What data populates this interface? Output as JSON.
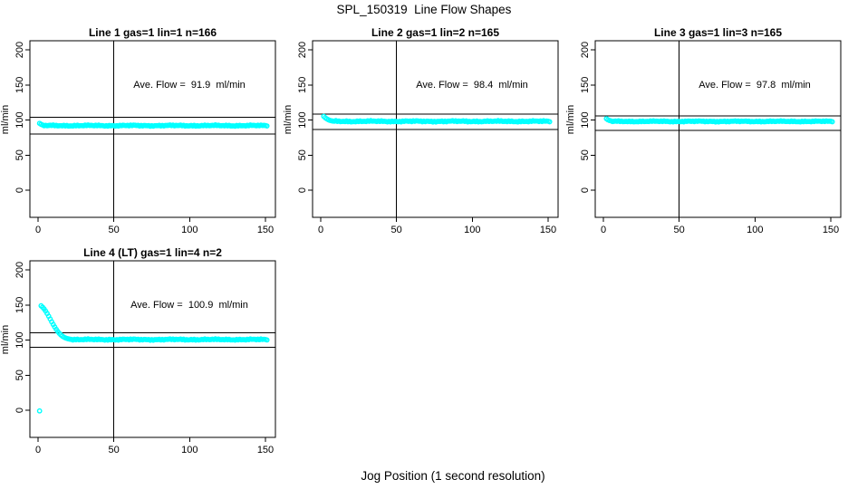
{
  "figure": {
    "title": "SPL_150319  Line Flow Shapes",
    "xlabel": "Jog Position (1 second resolution)",
    "accent_color": "#00FFFF",
    "line_color": "#000000"
  },
  "chart_data": [
    {
      "type": "scatter",
      "title": "Line 1 gas=1 lin=1 n=166",
      "ylabel": "ml/min",
      "annotation": "Ave. Flow =  91.9  ml/min",
      "ave_flow": 91.9,
      "x_ticks": [
        0,
        50,
        100,
        150
      ],
      "y_ticks": [
        0,
        50,
        100,
        150,
        200
      ],
      "xlim": [
        -5,
        157
      ],
      "ylim": [
        -39,
        213
      ],
      "grid": false,
      "vline_x": 50,
      "ref_lines": [
        104,
        80
      ],
      "annotation_pos": [
        100,
        150
      ],
      "marker": "open-circle",
      "outliers": [],
      "head_points": [
        [
          1,
          95.2
        ],
        [
          2,
          93.8
        ],
        [
          3,
          92.9
        ]
      ],
      "steady": {
        "x_from": 4,
        "x_to": 151,
        "y": 92.0,
        "amplitude": 1.0
      }
    },
    {
      "type": "scatter",
      "title": "Line 2 gas=1 lin=2 n=165",
      "ylabel": "ml/min",
      "annotation": "Ave. Flow =  98.4  ml/min",
      "ave_flow": 98.4,
      "x_ticks": [
        0,
        50,
        100,
        150
      ],
      "y_ticks": [
        0,
        50,
        100,
        150,
        200
      ],
      "xlim": [
        -5,
        157
      ],
      "ylim": [
        -39,
        213
      ],
      "grid": false,
      "vline_x": 50,
      "ref_lines": [
        108.4,
        86.5
      ],
      "annotation_pos": [
        100,
        150
      ],
      "marker": "open-circle",
      "outliers": [],
      "head_points": [
        [
          2,
          105.2
        ],
        [
          3,
          103.2
        ],
        [
          4,
          101.6
        ],
        [
          5,
          100.4
        ],
        [
          6,
          99.5
        ],
        [
          7,
          98.9
        ],
        [
          8,
          98.5
        ]
      ],
      "steady": {
        "x_from": 9,
        "x_to": 151,
        "y": 98.1,
        "amplitude": 1.1
      }
    },
    {
      "type": "scatter",
      "title": "Line 3 gas=1 lin=3 n=165",
      "ylabel": "ml/min",
      "annotation": "Ave. Flow =  97.8  ml/min",
      "ave_flow": 97.8,
      "x_ticks": [
        0,
        50,
        100,
        150
      ],
      "y_ticks": [
        0,
        50,
        100,
        150,
        200
      ],
      "xlim": [
        -5,
        157
      ],
      "ylim": [
        -39,
        213
      ],
      "grid": false,
      "vline_x": 50,
      "ref_lines": [
        105.8,
        85.2
      ],
      "annotation_pos": [
        100,
        150
      ],
      "marker": "open-circle",
      "outliers": [],
      "head_points": [
        [
          2,
          101.8
        ],
        [
          3,
          100.3
        ],
        [
          4,
          99.3
        ],
        [
          5,
          98.7
        ]
      ],
      "steady": {
        "x_from": 6,
        "x_to": 151,
        "y": 98.0,
        "amplitude": 0.9
      }
    },
    {
      "type": "scatter",
      "title": "Line 4 (LT) gas=1 lin=4 n=2",
      "ylabel": "ml/min",
      "annotation": "Ave. Flow =  100.9  ml/min",
      "ave_flow": 100.9,
      "x_ticks": [
        0,
        50,
        100,
        150
      ],
      "y_ticks": [
        0,
        50,
        100,
        150,
        200
      ],
      "xlim": [
        -5,
        157
      ],
      "ylim": [
        -39,
        213
      ],
      "grid": false,
      "vline_x": 50,
      "ref_lines": [
        110.3,
        89.7
      ],
      "annotation_pos": [
        100,
        150
      ],
      "marker": "open-circle",
      "outliers": [
        [
          1,
          -1
        ]
      ],
      "head_points": [
        [
          2,
          148.8
        ],
        [
          3,
          146.8
        ],
        [
          4,
          144.3
        ],
        [
          5,
          141.3
        ],
        [
          6,
          137.8
        ],
        [
          7,
          134.0
        ],
        [
          8,
          130.0
        ],
        [
          9,
          126.0
        ],
        [
          10,
          122.2
        ],
        [
          11,
          118.6
        ],
        [
          12,
          115.2
        ],
        [
          13,
          112.2
        ],
        [
          14,
          109.6
        ],
        [
          15,
          107.4
        ],
        [
          16,
          105.6
        ],
        [
          17,
          104.2
        ],
        [
          18,
          103.1
        ],
        [
          19,
          102.3
        ],
        [
          20,
          101.7
        ],
        [
          21,
          101.2
        ],
        [
          22,
          100.9
        ]
      ],
      "steady": {
        "x_from": 23,
        "x_to": 151,
        "y": 100.7,
        "amplitude": 1.1
      }
    }
  ]
}
